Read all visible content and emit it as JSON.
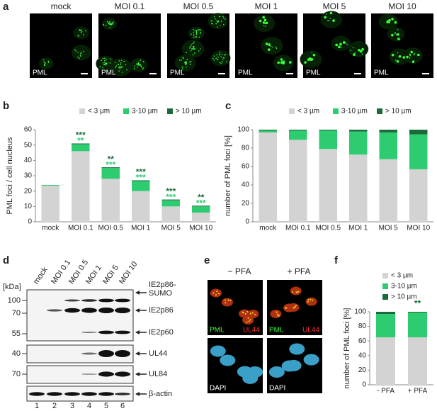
{
  "panels": [
    "a",
    "b",
    "c",
    "d",
    "e",
    "f"
  ],
  "microscopy_a": {
    "columns": [
      "mock",
      "MOI 0.1",
      "MOI 0.5",
      "MOI 1",
      "MOI 5",
      "MOI 10"
    ],
    "stain": "PML"
  },
  "blot": {
    "unit": "[kDa]",
    "lanes": [
      "mock",
      "MOI 0.1",
      "MOI 0.5",
      "MOI 1",
      "MOI 5",
      "MOI 10"
    ],
    "markers": [
      100,
      70,
      55,
      40,
      70
    ],
    "bands": [
      "IE2p86-SUMO",
      "IE2p86",
      "IE2p60",
      "UL44",
      "UL84",
      "β-actin"
    ],
    "lane_numbers": [
      1,
      2,
      3,
      4,
      5,
      6
    ]
  },
  "microscopy_e": {
    "conditions": [
      "− PFA",
      "+ PFA"
    ],
    "stains": [
      "PML",
      "UL44",
      "DAPI"
    ]
  },
  "chart_data": [
    {
      "type": "stacked-bar",
      "ylabel": "PML foci / cell nucleus",
      "categories": [
        "mock",
        "MOI 0.1",
        "MOI 0.5",
        "MOI 1",
        "MOI 5",
        "MOI 10"
      ],
      "series": [
        {
          "name": "< 3 µm",
          "color": "#d3d3d3",
          "values": [
            23.5,
            46,
            28,
            20,
            10,
            6
          ]
        },
        {
          "name": "3-10 µm",
          "color": "#2ecc71",
          "values": [
            0.5,
            4.5,
            7,
            6.5,
            4,
            4
          ],
          "stars": [
            null,
            "**",
            "***",
            "***",
            "***",
            "***"
          ]
        },
        {
          "name": "> 10 µm",
          "color": "#1b6b3a",
          "values": [
            0,
            0.5,
            0.5,
            0.5,
            0.5,
            0.5
          ],
          "stars": [
            null,
            "***",
            "**",
            "***",
            "***",
            "**"
          ]
        }
      ],
      "ylim": [
        0,
        60
      ],
      "yticks": [
        0,
        10,
        20,
        30,
        40,
        50,
        60
      ],
      "grid": false,
      "legend": "top"
    },
    {
      "type": "stacked-bar",
      "ylabel": "number of PML foci [%]",
      "categories": [
        "mock",
        "MOI 0.1",
        "MOI 0.5",
        "MOI 1",
        "MOI 5",
        "MOI 10"
      ],
      "series": [
        {
          "name": "< 3 µm",
          "color": "#d3d3d3",
          "values": [
            97,
            89,
            79,
            73,
            68,
            57
          ]
        },
        {
          "name": "3-10 µm",
          "color": "#2ecc71",
          "values": [
            2,
            10,
            20,
            25,
            29,
            38
          ]
        },
        {
          "name": "> 10 µm",
          "color": "#1b6b3a",
          "values": [
            1,
            1,
            1,
            2,
            3,
            5
          ]
        }
      ],
      "ylim": [
        0,
        100
      ],
      "yticks": [
        0,
        20,
        40,
        60,
        80,
        100
      ],
      "grid": false,
      "legend": "top"
    },
    {
      "type": "stacked-bar",
      "ylabel": "number of PML foci [%]",
      "categories": [
        "- PFA",
        "+ PFA"
      ],
      "series": [
        {
          "name": "< 3 µm",
          "color": "#d3d3d3",
          "values": [
            65,
            65
          ]
        },
        {
          "name": "3-10 µm",
          "color": "#2ecc71",
          "values": [
            32,
            34
          ]
        },
        {
          "name": "> 10 µm",
          "color": "#1b6b3a",
          "values": [
            3,
            1
          ],
          "stars": [
            null,
            "**"
          ]
        }
      ],
      "ylim": [
        0,
        100
      ],
      "yticks": [
        0,
        20,
        40,
        60,
        80,
        100
      ],
      "grid": false,
      "legend": "top"
    }
  ]
}
